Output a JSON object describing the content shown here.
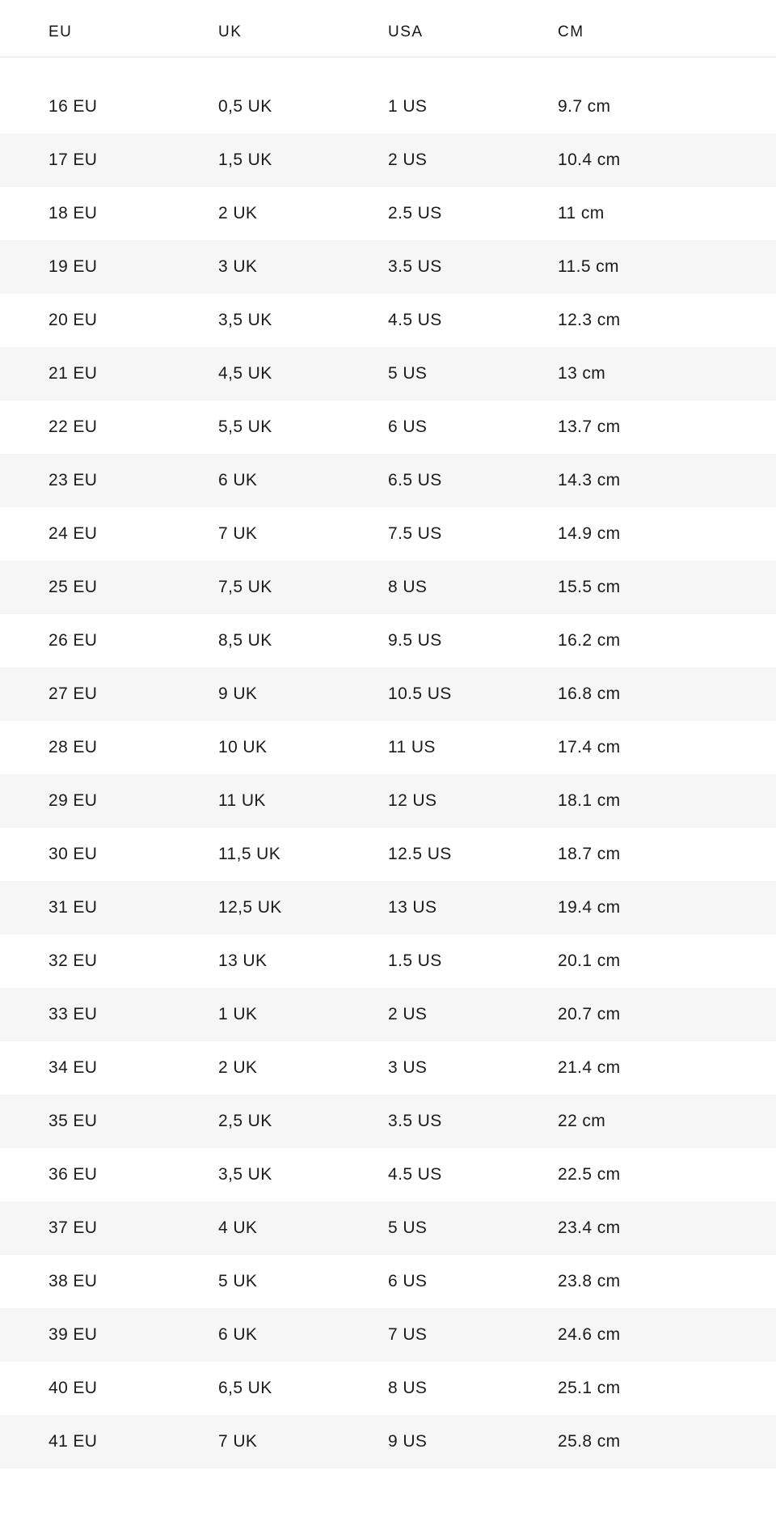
{
  "table": {
    "header": {
      "columns": [
        "EU",
        "UK",
        "USA",
        "CM"
      ]
    },
    "rows": [
      [
        "16 EU",
        "0,5 UK",
        "1 US",
        "9.7 cm"
      ],
      [
        "17 EU",
        "1,5 UK",
        "2 US",
        "10.4 cm"
      ],
      [
        "18 EU",
        "2 UK",
        "2.5 US",
        "11 cm"
      ],
      [
        "19 EU",
        "3 UK",
        "3.5 US",
        "11.5 cm"
      ],
      [
        "20 EU",
        "3,5 UK",
        "4.5 US",
        "12.3 cm"
      ],
      [
        "21 EU",
        "4,5 UK",
        "5 US",
        "13 cm"
      ],
      [
        "22 EU",
        "5,5 UK",
        "6 US",
        "13.7 cm"
      ],
      [
        "23 EU",
        "6 UK",
        "6.5 US",
        "14.3 cm"
      ],
      [
        "24 EU",
        "7 UK",
        "7.5 US",
        "14.9 cm"
      ],
      [
        "25 EU",
        "7,5 UK",
        "8 US",
        "15.5 cm"
      ],
      [
        "26 EU",
        "8,5 UK",
        "9.5 US",
        "16.2 cm"
      ],
      [
        "27 EU",
        "9 UK",
        "10.5 US",
        "16.8 cm"
      ],
      [
        "28 EU",
        "10 UK",
        "11 US",
        "17.4 cm"
      ],
      [
        "29 EU",
        "11 UK",
        "12 US",
        "18.1 cm"
      ],
      [
        "30 EU",
        "11,5 UK",
        "12.5 US",
        "18.7 cm"
      ],
      [
        "31 EU",
        "12,5 UK",
        "13 US",
        "19.4 cm"
      ],
      [
        "32 EU",
        "13 UK",
        "1.5 US",
        "20.1 cm"
      ],
      [
        "33 EU",
        "1 UK",
        "2 US",
        "20.7 cm"
      ],
      [
        "34 EU",
        "2 UK",
        "3 US",
        "21.4 cm"
      ],
      [
        "35 EU",
        "2,5 UK",
        "3.5 US",
        "22 cm"
      ],
      [
        "36 EU",
        "3,5 UK",
        "4.5 US",
        "22.5 cm"
      ],
      [
        "37 EU",
        "4 UK",
        "5 US",
        "23.4 cm"
      ],
      [
        "38 EU",
        "5 UK",
        "6 US",
        "23.8 cm"
      ],
      [
        "39 EU",
        "6 UK",
        "7 US",
        "24.6 cm"
      ],
      [
        "40 EU",
        "6,5 UK",
        "8 US",
        "25.1 cm"
      ],
      [
        "41 EU",
        "7 UK",
        "9 US",
        "25.8 cm"
      ]
    ],
    "colors": {
      "row_stripe": "#f6f6f6",
      "divider": "#e8e8e8",
      "text": "#1b1b1b"
    }
  }
}
